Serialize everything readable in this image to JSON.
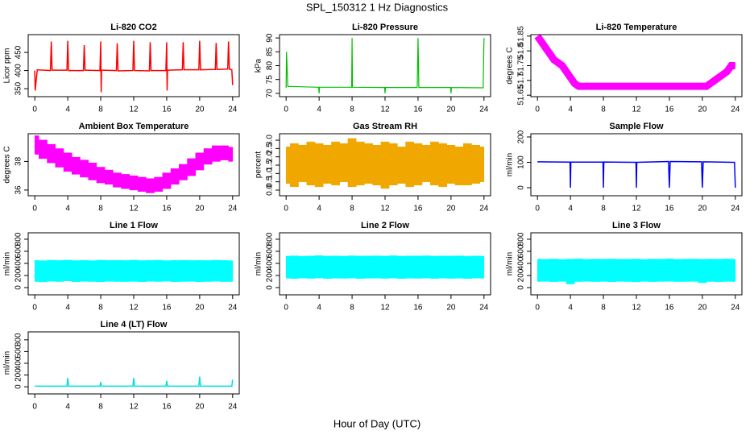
{
  "title": "SPL_150312  1 Hz Diagnostics",
  "x_label": "Hour of Day (UTC)",
  "chart_data": [
    {
      "type": "line",
      "title": "Li-820 CO2",
      "y_label": "Licor ppm",
      "color": "#ff0000",
      "stroke_width": 1.5,
      "xlim": [
        -0.8,
        24.8
      ],
      "xticks": [
        0,
        4,
        8,
        12,
        16,
        20,
        24
      ],
      "ylim": [
        328,
        499
      ],
      "yticks": [
        350,
        400,
        450
      ],
      "x": [
        0,
        0.05,
        0.3,
        1.9,
        2,
        2.1,
        3.9,
        4,
        4.1,
        5.9,
        6,
        6.1,
        7.9,
        8,
        8.05,
        8.1,
        9.9,
        10,
        10.1,
        11.9,
        12,
        12.1,
        13.9,
        14,
        14.1,
        15.9,
        16,
        16.05,
        16.1,
        17.9,
        18,
        18.1,
        19.9,
        20,
        20.1,
        21.9,
        22,
        22.1,
        23.4,
        23.5,
        23.6,
        23.9,
        24
      ],
      "values": [
        400,
        345,
        402,
        400,
        480,
        401,
        401,
        482,
        400,
        400,
        470,
        401,
        400,
        480,
        340,
        401,
        400,
        475,
        399,
        400,
        482,
        400,
        399,
        478,
        400,
        400,
        478,
        345,
        401,
        402,
        478,
        402,
        402,
        482,
        402,
        403,
        476,
        403,
        404,
        480,
        404,
        402,
        360
      ]
    },
    {
      "type": "line",
      "title": "Li-820 Pressure",
      "y_label": "kPa",
      "color": "#00c000",
      "stroke_width": 1.2,
      "xlim": [
        -0.8,
        24.8
      ],
      "xticks": [
        0,
        4,
        8,
        12,
        16,
        20,
        24
      ],
      "ylim": [
        68.8,
        91.2
      ],
      "yticks": [
        70,
        75,
        80,
        85,
        90
      ],
      "x": [
        0,
        0.05,
        0.2,
        3.95,
        4,
        4.05,
        7.95,
        8,
        8.05,
        11.95,
        12,
        12.05,
        15.9,
        16,
        16.1,
        19.95,
        20,
        20.05,
        23.9,
        24
      ],
      "values": [
        72,
        85,
        72.5,
        72.2,
        70,
        72.2,
        72.2,
        90,
        72.2,
        72.1,
        70,
        72.1,
        72.1,
        90,
        72.1,
        72.1,
        70,
        72.1,
        72,
        90
      ]
    },
    {
      "type": "line",
      "title": "Li-820 Temperature",
      "y_label": "degrees C",
      "color": "#ff00ff",
      "stroke_width": 9,
      "xlim": [
        -0.8,
        24.8
      ],
      "xticks": [
        0,
        4,
        8,
        12,
        16,
        20,
        24
      ],
      "ylim": [
        51.645,
        51.855
      ],
      "yticks": [
        51.65,
        51.7,
        51.75,
        51.8,
        51.85
      ],
      "x": [
        0,
        0.5,
        1,
        1.5,
        2,
        2.5,
        3,
        3.5,
        4,
        4.5,
        5,
        5.5,
        6,
        6.5,
        7,
        7.5,
        8,
        8.5,
        9,
        9.5,
        10,
        10.5,
        11,
        11.5,
        12,
        12.5,
        13,
        13.5,
        14,
        14.5,
        15,
        15.5,
        16,
        16.5,
        17,
        17.5,
        18,
        18.5,
        19,
        19.5,
        20,
        20.5,
        21,
        21.5,
        22,
        22.5,
        23,
        23.5,
        24
      ],
      "values": [
        51.85,
        51.83,
        51.81,
        51.79,
        51.77,
        51.76,
        51.75,
        51.73,
        51.71,
        51.69,
        51.68,
        51.68,
        51.68,
        51.68,
        51.68,
        51.68,
        51.68,
        51.68,
        51.68,
        51.68,
        51.68,
        51.68,
        51.68,
        51.68,
        51.68,
        51.68,
        51.68,
        51.68,
        51.68,
        51.68,
        51.68,
        51.68,
        51.68,
        51.68,
        51.68,
        51.68,
        51.68,
        51.68,
        51.68,
        51.68,
        51.68,
        51.68,
        51.69,
        51.7,
        51.71,
        51.72,
        51.73,
        51.75,
        51.75
      ]
    },
    {
      "type": "range",
      "title": "Ambient Box Temperature",
      "y_label": "degrees C",
      "color": "#ff00ff",
      "xlim": [
        -0.8,
        24.8
      ],
      "xticks": [
        0,
        4,
        8,
        12,
        16,
        20,
        24
      ],
      "ylim": [
        35.6,
        39.94
      ],
      "yticks": [
        36,
        38
      ],
      "x": [
        0,
        1,
        2,
        3,
        4,
        5,
        6,
        7,
        8,
        9,
        10,
        11,
        12,
        13,
        14,
        15,
        16,
        17,
        18,
        19,
        20,
        21,
        22,
        23,
        24
      ],
      "low": [
        38.5,
        38.2,
        37.9,
        37.6,
        37.3,
        37.1,
        36.9,
        36.7,
        36.5,
        36.4,
        36.2,
        36.1,
        36.0,
        35.9,
        35.8,
        35.9,
        36.1,
        36.4,
        36.7,
        37.0,
        37.4,
        37.8,
        38.0,
        38.1,
        38.0
      ],
      "high": [
        39.8,
        39.5,
        39.2,
        38.9,
        38.6,
        38.3,
        38.1,
        37.9,
        37.6,
        37.4,
        37.2,
        37.1,
        37.0,
        36.9,
        36.8,
        36.9,
        37.2,
        37.5,
        37.8,
        38.2,
        38.6,
        38.9,
        39.1,
        39.1,
        39.0
      ]
    },
    {
      "type": "range",
      "title": "Gas Stream RH",
      "y_label": "percent",
      "color": "#f0a800",
      "xlim": [
        -0.8,
        24.8
      ],
      "xticks": [
        0,
        4,
        8,
        12,
        16,
        20,
        24
      ],
      "ylim": [
        -0.34,
        3.39
      ],
      "yticks": [
        {
          "value": 0,
          "label": "0.0"
        },
        0.5,
        {
          "value": 1,
          "label": "1.0"
        },
        1.5,
        {
          "value": 2,
          "label": "2.0"
        },
        2.5,
        {
          "value": 3,
          "label": "3.0"
        }
      ],
      "x": [
        0,
        1,
        2,
        3,
        4,
        5,
        6,
        7,
        8,
        9,
        10,
        11,
        12,
        13,
        14,
        15,
        16,
        17,
        18,
        19,
        20,
        21,
        22,
        23,
        24
      ],
      "low": [
        0.4,
        0.2,
        0.5,
        0.3,
        0.2,
        0.4,
        0.3,
        0.5,
        0.2,
        0.3,
        0.4,
        0.3,
        0.1,
        0.3,
        0.4,
        0.2,
        0.3,
        0.5,
        0.3,
        0.2,
        0.4,
        0.3,
        0.3,
        0.4,
        0.5
      ],
      "high": [
        2.6,
        2.8,
        2.7,
        2.9,
        2.8,
        2.7,
        2.9,
        2.8,
        3.1,
        2.9,
        2.8,
        2.7,
        2.9,
        2.8,
        2.6,
        2.9,
        2.8,
        2.7,
        2.9,
        2.8,
        2.7,
        2.6,
        2.8,
        2.7,
        2.6
      ]
    },
    {
      "type": "line",
      "title": "Sample Flow",
      "y_label": "ml/min",
      "color": "#0000ff",
      "stroke_width": 1.5,
      "xlim": [
        -0.8,
        24.8
      ],
      "xticks": [
        0,
        4,
        8,
        12,
        16,
        20,
        24
      ],
      "ylim": [
        -31.7,
        212.7
      ],
      "yticks": [
        0,
        100,
        200
      ],
      "x": [
        0,
        3.95,
        4,
        4.05,
        7.95,
        8,
        8.05,
        11.95,
        12,
        12.05,
        15.9,
        16,
        16.1,
        19.9,
        20,
        20.1,
        23.8,
        23.9,
        24
      ],
      "values": [
        102,
        101,
        0,
        101,
        101,
        0,
        101,
        100,
        0,
        100,
        103,
        0,
        103,
        102,
        0,
        102,
        100,
        100,
        0
      ]
    },
    {
      "type": "range",
      "title": "Line 1 Flow",
      "y_label": "ml/min",
      "color": "#00ffff",
      "xlim": [
        -0.8,
        24.8
      ],
      "xticks": [
        0,
        4,
        8,
        12,
        16,
        20,
        24
      ],
      "ylim": [
        -120,
        906
      ],
      "yticks": [
        0,
        200,
        400,
        600,
        800
      ],
      "x": [
        0,
        1,
        2,
        3,
        4,
        5,
        6,
        7,
        8,
        9,
        10,
        11,
        12,
        13,
        14,
        15,
        16,
        17,
        18,
        19,
        20,
        21,
        22,
        23,
        24
      ],
      "low": [
        100,
        95,
        105,
        100,
        110,
        98,
        102,
        100,
        96,
        104,
        100,
        99,
        101,
        97,
        103,
        100,
        105,
        98,
        100,
        102,
        96,
        100,
        104,
        99,
        100
      ],
      "high": [
        450,
        445,
        452,
        448,
        455,
        447,
        450,
        446,
        453,
        449,
        451,
        448,
        454,
        447,
        450,
        452,
        446,
        449,
        451,
        448,
        450,
        447,
        452,
        449,
        445
      ]
    },
    {
      "type": "range",
      "title": "Line 2 Flow",
      "y_label": "ml/min",
      "color": "#00ffff",
      "xlim": [
        -0.8,
        24.8
      ],
      "xticks": [
        0,
        4,
        8,
        12,
        16,
        20,
        24
      ],
      "ylim": [
        -120,
        906
      ],
      "yticks": [
        0,
        200,
        400,
        600,
        800
      ],
      "x": [
        0,
        1,
        2,
        3,
        4,
        5,
        6,
        7,
        8,
        9,
        10,
        11,
        12,
        13,
        14,
        15,
        16,
        17,
        18,
        19,
        20,
        21,
        22,
        23,
        24
      ],
      "low": [
        155,
        150,
        158,
        152,
        160,
        150,
        155,
        153,
        157,
        150,
        154,
        156,
        152,
        158,
        150,
        155,
        153,
        157,
        151,
        156,
        152,
        155,
        150,
        158,
        154
      ],
      "high": [
        520,
        525,
        518,
        522,
        528,
        520,
        524,
        519,
        526,
        521,
        523,
        525,
        520,
        527,
        519,
        524,
        522,
        526,
        520,
        523,
        521,
        525,
        518,
        522,
        520
      ]
    },
    {
      "type": "range",
      "title": "Line 3 Flow",
      "y_label": "ml/min",
      "color": "#00ffff",
      "xlim": [
        -0.8,
        24.8
      ],
      "xticks": [
        0,
        4,
        8,
        12,
        16,
        20,
        24
      ],
      "ylim": [
        -120,
        906
      ],
      "yticks": [
        0,
        200,
        400,
        600,
        800
      ],
      "x": [
        0,
        1,
        2,
        3,
        4,
        5,
        6,
        7,
        8,
        9,
        10,
        11,
        12,
        13,
        14,
        15,
        16,
        17,
        18,
        19,
        20,
        21,
        22,
        23,
        24
      ],
      "low": [
        100,
        104,
        98,
        102,
        60,
        100,
        103,
        99,
        101,
        97,
        104,
        100,
        95,
        102,
        98,
        101,
        103,
        99,
        100,
        102,
        80,
        100,
        98,
        101,
        100
      ],
      "high": [
        470,
        468,
        472,
        466,
        470,
        474,
        467,
        471,
        469,
        473,
        468,
        470,
        472,
        466,
        471,
        469,
        474,
        467,
        470,
        472,
        468,
        471,
        469,
        473,
        470
      ]
    },
    {
      "type": "line",
      "title": "Line 4 (LT) Flow",
      "y_label": "ml/min",
      "color": "#00e0e0",
      "stroke_width": 1.5,
      "xlim": [
        -0.8,
        24.8
      ],
      "xticks": [
        0,
        4,
        8,
        12,
        16,
        20,
        24
      ],
      "ylim": [
        -122,
        935
      ],
      "yticks": [
        0,
        200,
        400,
        600,
        800
      ],
      "x": [
        0,
        3.9,
        4,
        4.1,
        7.9,
        8,
        8.1,
        11.9,
        12,
        12.1,
        15.9,
        16,
        16.1,
        19.9,
        20,
        20.1,
        23.9,
        24
      ],
      "values": [
        10,
        10,
        150,
        10,
        10,
        80,
        10,
        10,
        150,
        10,
        10,
        100,
        10,
        10,
        170,
        10,
        10,
        120
      ]
    }
  ]
}
